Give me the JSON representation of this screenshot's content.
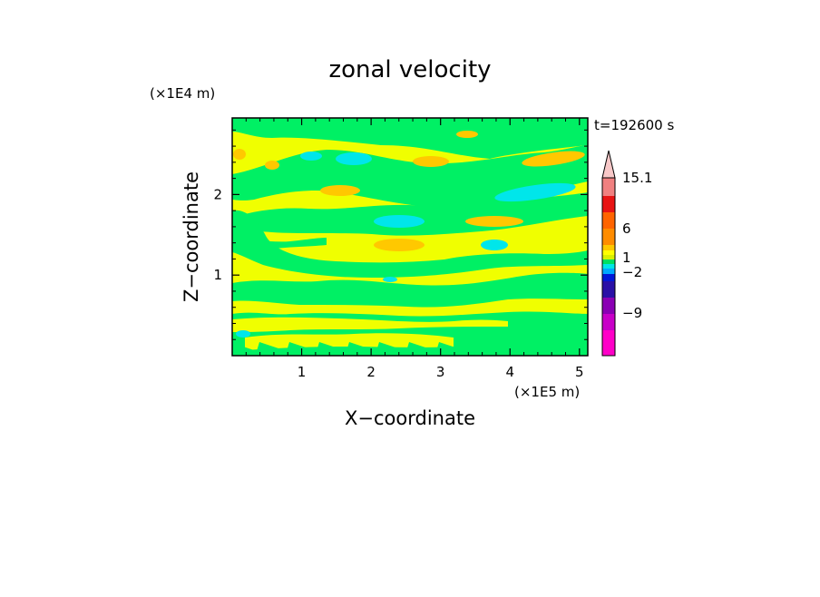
{
  "chart_data": {
    "type": "heatmap",
    "title": "zonal velocity",
    "xlabel": "X−coordinate",
    "ylabel": "Z−coordinate",
    "x_unit": "(×1E5 m)",
    "y_unit": "(×1E4 m)",
    "time_label": "t=192600 s",
    "xlim": [
      0,
      5.12
    ],
    "ylim": [
      0,
      2.95
    ],
    "x_ticks": [
      1,
      2,
      3,
      4,
      5
    ],
    "y_ticks": [
      1,
      2
    ],
    "grid": false,
    "colorbar": {
      "position": "right",
      "levels": [
        {
          "color": "#ff00c8"
        },
        {
          "color": "#c800c8"
        },
        {
          "color": "#8a00b4"
        },
        {
          "color": "#2a10a6"
        },
        {
          "color": "#0018d8"
        },
        {
          "color": "#00a8ff"
        },
        {
          "color": "#00e6e6"
        },
        {
          "color": "#00e060"
        },
        {
          "color": "#d8f000"
        },
        {
          "color": "#ffff00"
        },
        {
          "color": "#ffc800"
        },
        {
          "color": "#ff8c00"
        },
        {
          "color": "#ff6400"
        },
        {
          "color": "#e81414"
        },
        {
          "color": "#f08080"
        },
        {
          "color": "#f8c8c8"
        }
      ],
      "labels": [
        "15.1",
        "6",
        "1",
        "−2",
        "−9"
      ]
    },
    "field_colors": {
      "background": "#f0ff00",
      "green": "#00f064",
      "cyan": "#00e6ea",
      "orange": "#ffc800"
    }
  }
}
